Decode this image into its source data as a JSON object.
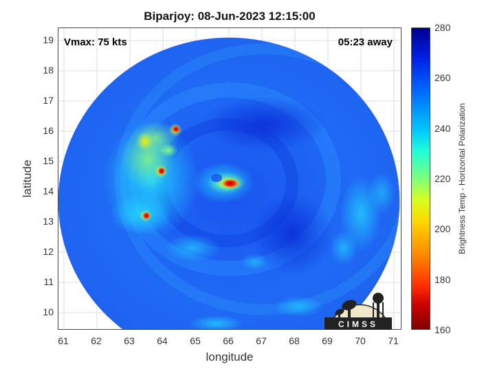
{
  "title": "Biparjoy: 08-Jun-2023 12:15:00",
  "vmax_text": "Vmax: 75 kts",
  "time_text": "05:23 away",
  "xlabel": "longitude",
  "ylabel": "latitude",
  "colorbar_label": "Brightness Temp - Horizontal Polarization",
  "colorbar_ticks": [
    "280",
    "260",
    "240",
    "220",
    "200",
    "180",
    "160"
  ],
  "logo_text": "CIMSS",
  "x_ticks": [
    "61",
    "62",
    "63",
    "64",
    "65",
    "66",
    "67",
    "68",
    "69",
    "70",
    "71"
  ],
  "y_ticks": [
    "19",
    "18",
    "17",
    "16",
    "15",
    "14",
    "13",
    "12",
    "11",
    "10"
  ],
  "axes": {
    "x_range": [
      60.8,
      71.2
    ],
    "y_range": [
      9.4,
      19.4
    ],
    "grid": true
  },
  "colormap": {
    "name": "jet",
    "range": [
      160,
      280
    ]
  },
  "storm_center": {
    "lon": 66.0,
    "lat": 14.3
  }
}
